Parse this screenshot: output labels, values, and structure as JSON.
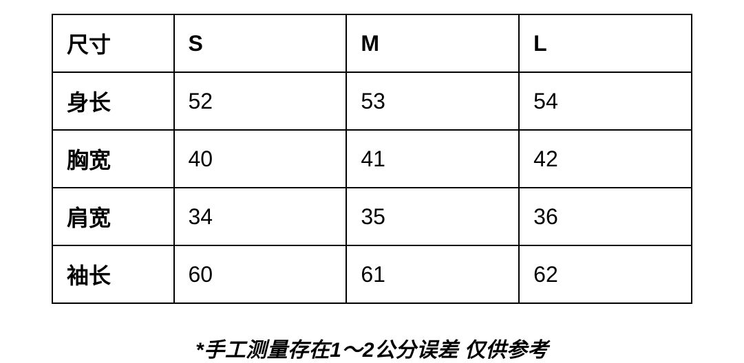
{
  "table": {
    "columns": [
      "尺寸",
      "S",
      "M",
      "L"
    ],
    "rows": [
      {
        "label": "身长",
        "values": [
          "52",
          "53",
          "54"
        ]
      },
      {
        "label": "胸宽",
        "values": [
          "40",
          "41",
          "42"
        ]
      },
      {
        "label": "肩宽",
        "values": [
          "34",
          "35",
          "36"
        ]
      },
      {
        "label": "袖长",
        "values": [
          "60",
          "61",
          "62"
        ]
      }
    ],
    "border_color": "#000000",
    "border_width": 2,
    "background_color": "#ffffff",
    "text_color": "#000000",
    "header_fontsize": 32,
    "cell_fontsize": 32,
    "header_fontweight": 700,
    "label_fontweight": 700,
    "value_fontweight": 400,
    "column_widths": [
      "19%",
      "27%",
      "27%",
      "27%"
    ]
  },
  "footnote": {
    "text": "*手工测量存在1～2公分误差 仅供参考",
    "fontsize": 30,
    "fontweight": 700,
    "font_style": "italic",
    "color": "#000000",
    "align": "center"
  }
}
